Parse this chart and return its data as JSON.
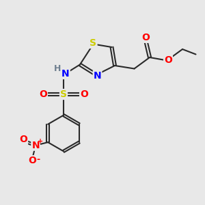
{
  "bg_color": "#e8e8e8",
  "bond_color": "#2a2a2a",
  "bond_width": 1.5,
  "atom_colors": {
    "S": "#cccc00",
    "N": "#0000ff",
    "O": "#ff0000",
    "H": "#708090",
    "C": "#2a2a2a"
  },
  "font_size": 10,
  "font_size_h": 9,
  "xlim": [
    0,
    10
  ],
  "ylim": [
    0,
    10
  ]
}
